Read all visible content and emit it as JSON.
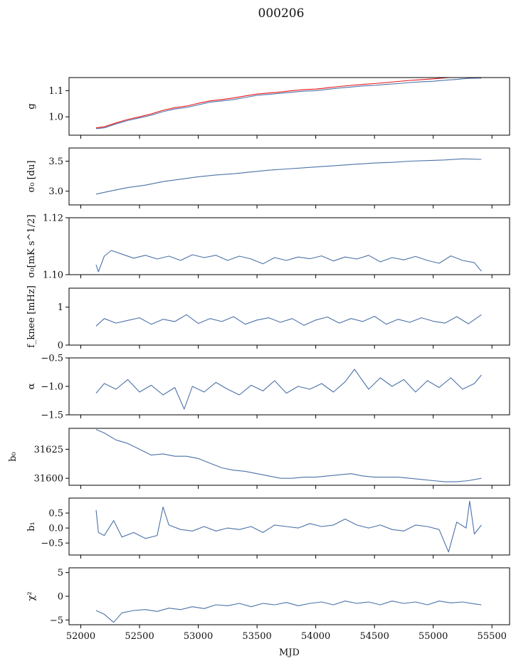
{
  "figure": {
    "title": "000206"
  },
  "colors": {
    "series": "#4c72a8",
    "reference": "#e8141a"
  },
  "chart_data": [
    {
      "type": "line",
      "id": "g",
      "ylabel": "g",
      "xlim": [
        51900,
        55650
      ],
      "ylim": [
        0.93,
        1.15
      ],
      "yticks": [
        1.0,
        1.1
      ],
      "ytick_labels": [
        "1.0",
        "1.1"
      ],
      "series": [
        {
          "color": "#4c72a8",
          "x": [
            52130,
            52200,
            52300,
            52400,
            52500,
            52600,
            52700,
            52800,
            52900,
            53000,
            53100,
            53200,
            53300,
            53400,
            53500,
            53600,
            53700,
            53800,
            53900,
            54000,
            54100,
            54200,
            54300,
            54400,
            54500,
            54600,
            54700,
            54800,
            54900,
            55000,
            55100,
            55200,
            55300,
            55410
          ],
          "y": [
            0.955,
            0.958,
            0.973,
            0.986,
            0.996,
            1.006,
            1.02,
            1.03,
            1.036,
            1.046,
            1.056,
            1.061,
            1.066,
            1.074,
            1.082,
            1.086,
            1.09,
            1.094,
            1.098,
            1.1,
            1.105,
            1.11,
            1.114,
            1.118,
            1.12,
            1.124,
            1.127,
            1.131,
            1.134,
            1.136,
            1.14,
            1.143,
            1.147,
            1.148
          ]
        },
        {
          "color": "#e8141a",
          "x": [
            52130,
            52200,
            52300,
            52400,
            52500,
            52600,
            52700,
            52800,
            52900,
            53000,
            53100,
            53200,
            53300,
            53400,
            53500,
            53600,
            53700,
            53800,
            53900,
            54000,
            54100,
            54200,
            54300,
            54400,
            54500,
            54600,
            54700,
            54800,
            54900,
            55000,
            55100,
            55200,
            55300,
            55410
          ],
          "y": [
            0.958,
            0.962,
            0.977,
            0.99,
            1.0,
            1.011,
            1.025,
            1.035,
            1.041,
            1.052,
            1.061,
            1.066,
            1.072,
            1.08,
            1.087,
            1.091,
            1.095,
            1.1,
            1.104,
            1.106,
            1.111,
            1.116,
            1.12,
            1.124,
            1.127,
            1.131,
            1.135,
            1.139,
            1.142,
            1.145,
            1.149,
            1.152,
            1.156,
            1.15
          ]
        }
      ]
    },
    {
      "type": "line",
      "id": "sigma0_du",
      "ylabel": "σ₀ [du]",
      "xlim": [
        51900,
        55650
      ],
      "ylim": [
        2.77,
        3.72
      ],
      "yticks": [
        3.0,
        3.5
      ],
      "ytick_labels": [
        "3.0",
        "3.5"
      ],
      "series": [
        {
          "color": "#4c72a8",
          "x": [
            52130,
            52250,
            52400,
            52550,
            52700,
            52850,
            53000,
            53150,
            53300,
            53450,
            53600,
            53750,
            53900,
            54050,
            54200,
            54350,
            54500,
            54650,
            54800,
            54950,
            55100,
            55250,
            55410
          ],
          "y": [
            2.95,
            3.0,
            3.06,
            3.1,
            3.16,
            3.2,
            3.24,
            3.27,
            3.29,
            3.32,
            3.35,
            3.37,
            3.39,
            3.41,
            3.43,
            3.45,
            3.47,
            3.48,
            3.5,
            3.51,
            3.52,
            3.54,
            3.53
          ]
        }
      ]
    },
    {
      "type": "line",
      "id": "sigma0_mks",
      "ylabel": "σ₀[mK s^1/2]",
      "xlim": [
        51900,
        55650
      ],
      "ylim": [
        1.1,
        1.12
      ],
      "yticks": [
        1.1,
        1.12
      ],
      "ytick_labels": [
        "1.10",
        "1.12"
      ],
      "series": [
        {
          "color": "#4c72a8",
          "x": [
            52130,
            52150,
            52200,
            52260,
            52350,
            52450,
            52550,
            52650,
            52750,
            52850,
            52950,
            53050,
            53150,
            53250,
            53350,
            53450,
            53550,
            53650,
            53750,
            53850,
            53950,
            54050,
            54150,
            54250,
            54350,
            54450,
            54550,
            54650,
            54750,
            54850,
            54950,
            55050,
            55150,
            55250,
            55350,
            55410
          ],
          "y": [
            1.1035,
            1.101,
            1.1065,
            1.1085,
            1.1072,
            1.1058,
            1.1068,
            1.1055,
            1.1065,
            1.105,
            1.107,
            1.106,
            1.1068,
            1.105,
            1.1065,
            1.1055,
            1.1038,
            1.106,
            1.105,
            1.1062,
            1.1056,
            1.1066,
            1.1048,
            1.1062,
            1.1055,
            1.1068,
            1.1045,
            1.106,
            1.1052,
            1.1064,
            1.105,
            1.104,
            1.1066,
            1.105,
            1.1042,
            1.1012
          ]
        }
      ]
    },
    {
      "type": "line",
      "id": "fknee",
      "ylabel": "f_knee [mHz]",
      "xlim": [
        51900,
        55650
      ],
      "ylim": [
        0,
        1.5
      ],
      "yticks": [
        0,
        1
      ],
      "ytick_labels": [
        "0",
        "1"
      ],
      "series": [
        {
          "color": "#4c72a8",
          "x": [
            52130,
            52200,
            52300,
            52400,
            52500,
            52600,
            52700,
            52800,
            52900,
            53000,
            53100,
            53200,
            53300,
            53400,
            53500,
            53600,
            53700,
            53800,
            53900,
            54000,
            54100,
            54200,
            54300,
            54400,
            54500,
            54600,
            54700,
            54800,
            54900,
            55000,
            55100,
            55200,
            55300,
            55410
          ],
          "y": [
            0.5,
            0.7,
            0.58,
            0.65,
            0.72,
            0.55,
            0.68,
            0.62,
            0.8,
            0.57,
            0.7,
            0.62,
            0.75,
            0.55,
            0.66,
            0.72,
            0.6,
            0.7,
            0.52,
            0.66,
            0.74,
            0.58,
            0.7,
            0.62,
            0.76,
            0.55,
            0.68,
            0.6,
            0.72,
            0.63,
            0.58,
            0.75,
            0.56,
            0.8
          ]
        }
      ]
    },
    {
      "type": "line",
      "id": "alpha",
      "ylabel": "α",
      "xlim": [
        51900,
        55650
      ],
      "ylim": [
        -1.5,
        -0.5
      ],
      "yticks": [
        -1.5,
        -1.0,
        -0.5
      ],
      "ytick_labels": [
        "−1.5",
        "−1.0",
        "−0.5"
      ],
      "series": [
        {
          "color": "#4c72a8",
          "x": [
            52130,
            52200,
            52300,
            52400,
            52500,
            52600,
            52700,
            52800,
            52880,
            52950,
            53050,
            53150,
            53250,
            53350,
            53450,
            53550,
            53650,
            53750,
            53850,
            53950,
            54050,
            54150,
            54250,
            54330,
            54450,
            54550,
            54650,
            54750,
            54850,
            54950,
            55050,
            55150,
            55250,
            55350,
            55410
          ],
          "y": [
            -1.12,
            -0.95,
            -1.05,
            -0.88,
            -1.1,
            -0.98,
            -1.15,
            -1.02,
            -1.4,
            -1.0,
            -1.1,
            -0.93,
            -1.05,
            -1.15,
            -0.98,
            -1.08,
            -0.9,
            -1.12,
            -1.0,
            -1.05,
            -0.95,
            -1.1,
            -0.92,
            -0.7,
            -1.05,
            -0.85,
            -1.0,
            -0.88,
            -1.1,
            -0.9,
            -1.02,
            -0.85,
            -1.05,
            -0.95,
            -0.8
          ]
        }
      ]
    },
    {
      "type": "line",
      "id": "b0",
      "ylabel": "b₀",
      "xlim": [
        51900,
        55650
      ],
      "ylim": [
        31594,
        31643
      ],
      "yticks": [
        31600,
        31625
      ],
      "ytick_labels": [
        "31600",
        "31625"
      ],
      "series": [
        {
          "color": "#4c72a8",
          "x": [
            52130,
            52200,
            52300,
            52400,
            52500,
            52600,
            52700,
            52800,
            52900,
            53000,
            53100,
            53200,
            53300,
            53400,
            53500,
            53600,
            53700,
            53800,
            53900,
            54000,
            54100,
            54200,
            54300,
            54400,
            54500,
            54600,
            54700,
            54800,
            54900,
            55000,
            55100,
            55200,
            55300,
            55410
          ],
          "y": [
            31642,
            31639,
            31633,
            31630,
            31625,
            31620,
            31621,
            31619,
            31619,
            31617,
            31613,
            31609,
            31607,
            31606,
            31604,
            31602,
            31600,
            31600,
            31601,
            31601,
            31602,
            31603,
            31604,
            31602,
            31601,
            31601,
            31601,
            31600,
            31599,
            31598,
            31597,
            31597,
            31598,
            31600
          ]
        }
      ]
    },
    {
      "type": "line",
      "id": "b1",
      "ylabel": "b₁",
      "xlim": [
        51900,
        55650
      ],
      "ylim": [
        -0.9,
        1.0
      ],
      "yticks": [
        -0.5,
        0.0,
        0.5
      ],
      "ytick_labels": [
        "−0.5",
        "0.0",
        "0.5"
      ],
      "series": [
        {
          "color": "#4c72a8",
          "x": [
            52130,
            52150,
            52200,
            52280,
            52350,
            52450,
            52550,
            52650,
            52700,
            52750,
            52850,
            52950,
            53050,
            53150,
            53250,
            53350,
            53450,
            53550,
            53650,
            53750,
            53850,
            53950,
            54050,
            54150,
            54250,
            54350,
            54450,
            54550,
            54650,
            54750,
            54850,
            54950,
            55050,
            55130,
            55200,
            55280,
            55310,
            55350,
            55410
          ],
          "y": [
            0.6,
            -0.15,
            -0.25,
            0.25,
            -0.3,
            -0.15,
            -0.35,
            -0.25,
            0.7,
            0.1,
            -0.05,
            -0.1,
            0.05,
            -0.1,
            0.0,
            -0.05,
            0.05,
            -0.15,
            0.1,
            0.05,
            0.0,
            0.15,
            0.05,
            0.1,
            0.3,
            0.1,
            0.0,
            0.1,
            -0.05,
            -0.1,
            0.1,
            0.05,
            -0.05,
            -0.8,
            0.2,
            0.0,
            0.9,
            -0.2,
            0.1
          ]
        }
      ]
    },
    {
      "type": "line",
      "id": "chi2",
      "ylabel": "χ²",
      "xlim": [
        51900,
        55650
      ],
      "ylim": [
        -6,
        6
      ],
      "yticks": [
        -5,
        0,
        5
      ],
      "ytick_labels": [
        "−5",
        "0",
        "5"
      ],
      "xticks": [
        52000,
        52500,
        53000,
        53500,
        54000,
        54500,
        55000,
        55500
      ],
      "xtick_labels": [
        "52000",
        "52500",
        "53000",
        "53500",
        "54000",
        "54500",
        "55000",
        "55500"
      ],
      "xlabel": "MJD",
      "series": [
        {
          "color": "#4c72a8",
          "x": [
            52130,
            52200,
            52280,
            52350,
            52450,
            52550,
            52650,
            52750,
            52850,
            52950,
            53050,
            53150,
            53250,
            53350,
            53450,
            53550,
            53650,
            53750,
            53850,
            53950,
            54050,
            54150,
            54250,
            54350,
            54450,
            54550,
            54650,
            54750,
            54850,
            54950,
            55050,
            55150,
            55250,
            55350,
            55410
          ],
          "y": [
            -3.0,
            -3.8,
            -5.5,
            -3.5,
            -3.0,
            -2.8,
            -3.2,
            -2.5,
            -2.8,
            -2.2,
            -2.6,
            -1.8,
            -2.0,
            -1.5,
            -2.2,
            -1.5,
            -1.8,
            -1.3,
            -2.0,
            -1.5,
            -1.2,
            -1.8,
            -1.0,
            -1.5,
            -1.2,
            -1.8,
            -1.0,
            -1.5,
            -1.2,
            -1.8,
            -1.0,
            -1.4,
            -1.2,
            -1.6,
            -1.8
          ]
        }
      ]
    }
  ]
}
